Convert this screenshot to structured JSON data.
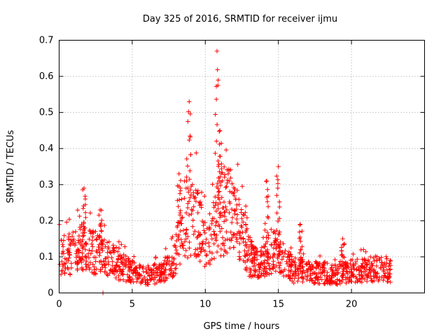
{
  "chart_data": {
    "type": "scatter",
    "title": "Day 325 of 2016, SRMTID for receiver ijmu",
    "xlabel": "GPS time / hours",
    "ylabel": "SRMTID / TECUs",
    "xlim": [
      0,
      25
    ],
    "ylim": [
      0,
      0.7
    ],
    "xticks": [
      0,
      5,
      10,
      15,
      20
    ],
    "xtick_labels": [
      "0",
      "5",
      "10",
      "15",
      "20"
    ],
    "yticks": [
      0,
      0.1,
      0.2,
      0.3,
      0.4,
      0.5,
      0.6,
      0.7
    ],
    "ytick_labels": [
      "0",
      "0.1",
      "0.2",
      "0.3",
      "0.4",
      "0.5",
      "0.6",
      "0.7"
    ],
    "grid": true,
    "marker": "+",
    "color": "#ff0000",
    "series": [
      {
        "name": "SRMTID",
        "profile": {
          "x": [
            0,
            1,
            1.8,
            2.5,
            3,
            4,
            5,
            6,
            7,
            7.8,
            8.5,
            9,
            9.5,
            10,
            10.5,
            11,
            11.5,
            12,
            12.5,
            13,
            13.5,
            14,
            14.5,
            15,
            15.5,
            16,
            17,
            18,
            19,
            20,
            21,
            22,
            22.7
          ],
          "y": [
            0.1,
            0.11,
            0.13,
            0.11,
            0.1,
            0.08,
            0.06,
            0.05,
            0.055,
            0.08,
            0.2,
            0.22,
            0.19,
            0.13,
            0.16,
            0.22,
            0.24,
            0.2,
            0.16,
            0.1,
            0.08,
            0.09,
            0.12,
            0.1,
            0.09,
            0.06,
            0.06,
            0.055,
            0.05,
            0.06,
            0.065,
            0.065,
            0.065
          ]
        },
        "peaks": [
          {
            "x": 1.7,
            "ymax": 0.29
          },
          {
            "x": 2.8,
            "ymax": 0.23
          },
          {
            "x": 8.2,
            "ymax": 0.33
          },
          {
            "x": 8.9,
            "ymax": 0.53
          },
          {
            "x": 10.8,
            "ymax": 0.67
          },
          {
            "x": 11.0,
            "ymax": 0.45
          },
          {
            "x": 14.2,
            "ymax": 0.31
          },
          {
            "x": 15.0,
            "ymax": 0.35
          },
          {
            "x": 16.5,
            "ymax": 0.19
          },
          {
            "x": 19.4,
            "ymax": 0.15
          }
        ],
        "n_points": 1400
      }
    ]
  }
}
